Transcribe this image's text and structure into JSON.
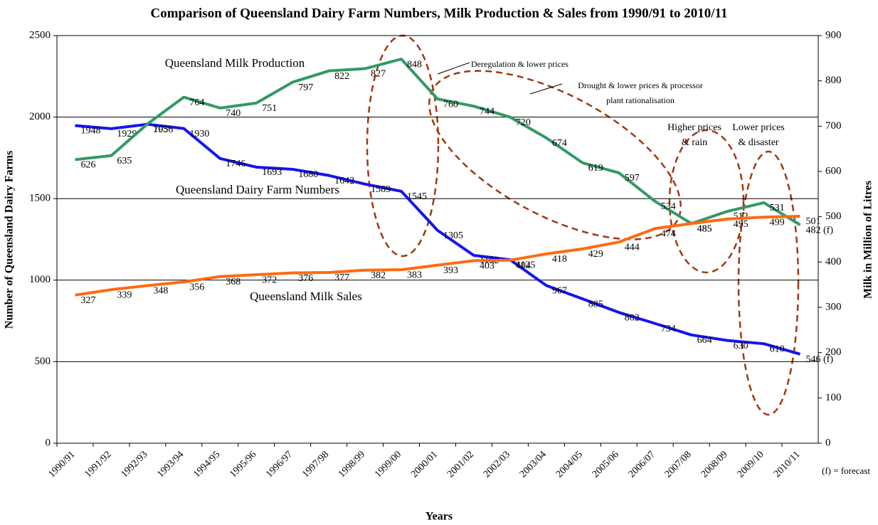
{
  "chart_data": {
    "type": "line",
    "title": "Comparison of Queensland Dairy Farm Numbers, Milk Production & Sales from 1990/91 to 2010/11",
    "x_label": "Years",
    "y_label": "Number of Queensland Dairy Farms",
    "y2_label": "Milk  in Million of Litres",
    "categories": [
      "1990/91",
      "1991/92",
      "1992/93",
      "1993/94",
      "1994/95",
      "1995/96",
      "1996/97",
      "1997/98",
      "1998/99",
      "1999/00",
      "2000/01",
      "2001/02",
      "2002/03",
      "2003/04",
      "2004/05",
      "2005/06",
      "2006/07",
      "2007/08",
      "2008/09",
      "2009/10",
      "2010/11"
    ],
    "ylim": [
      0,
      2500
    ],
    "yticks": [
      0,
      500,
      1000,
      1500,
      2000,
      2500
    ],
    "y2lim": [
      0,
      900
    ],
    "y2ticks": [
      0,
      100,
      200,
      300,
      400,
      500,
      600,
      700,
      800,
      900
    ],
    "grid": true,
    "series": [
      {
        "name": "Queensland Dairy Farm Numbers",
        "color": "#1515ee",
        "axis": "y",
        "values": [
          1948,
          1929,
          1956,
          1930,
          1746,
          1693,
          1680,
          1642,
          1589,
          1545,
          1305,
          1152,
          1125,
          967,
          885,
          802,
          734,
          664,
          630,
          610,
          546
        ],
        "value_labels": [
          "1948",
          "1929",
          "1956",
          "1930",
          "1746",
          "1693",
          "1680",
          "1642",
          "1589",
          "1545",
          "1305",
          "1152",
          "1125",
          "967",
          "885",
          "802",
          "734",
          "664",
          "630",
          "610",
          "546 (f)"
        ]
      },
      {
        "name": "Queensland Milk Production",
        "color": "#339966",
        "axis": "y2",
        "values": [
          626,
          635,
          705,
          764,
          740,
          751,
          797,
          822,
          827,
          848,
          760,
          744,
          720,
          674,
          619,
          597,
          534,
          485,
          512,
          531,
          482
        ],
        "value_labels": [
          "626",
          "635",
          "705",
          "764",
          "740",
          "751",
          "797",
          "822",
          "827",
          "848",
          "760",
          "744",
          "720",
          "674",
          "619",
          "597",
          "534",
          "485",
          "512",
          "531",
          "482 (f)"
        ]
      },
      {
        "name": "Queensland Milk Sales",
        "color": "#ff6a10",
        "axis": "y2",
        "values": [
          327,
          339,
          348,
          356,
          368,
          372,
          376,
          377,
          382,
          383,
          393,
          403,
          404,
          418,
          429,
          444,
          474,
          485,
          495,
          499,
          501
        ]
      }
    ],
    "annotations": [
      {
        "lines": [
          "Deregulation & lower prices"
        ]
      },
      {
        "lines": [
          "Drought & lower prices & processor",
          "plant rationalisation"
        ]
      },
      {
        "lines": [
          "Higher prices",
          "& rain"
        ]
      },
      {
        "lines": [
          "Lower prices",
          "& disaster"
        ]
      },
      {
        "lines": [
          "(f) = forecast"
        ]
      }
    ]
  }
}
